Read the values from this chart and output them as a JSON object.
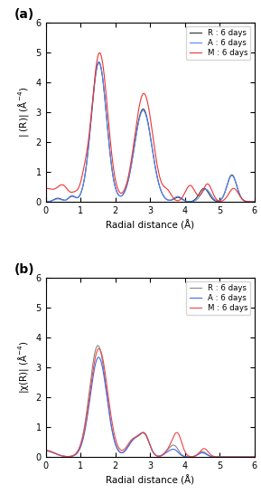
{
  "panel_a": {
    "ylabel": "| (R)| (Å$^{-4}$)",
    "xlabel": "Radial distance (Å)",
    "ylim": [
      0,
      6
    ],
    "xlim": [
      0,
      6
    ],
    "yticks": [
      0,
      1,
      2,
      3,
      4,
      5,
      6
    ],
    "xticks": [
      0,
      1,
      2,
      3,
      4,
      5,
      6
    ],
    "legend": [
      "R : 6 days",
      "A : 6 days",
      "M : 6 days"
    ],
    "colors": [
      "#333333",
      "#5588ff",
      "#ee3333"
    ],
    "label": "(a)"
  },
  "panel_b": {
    "ylabel": "|χ(R)| (Å$^{-4}$)",
    "xlabel": "Radial distance (Å)",
    "ylim": [
      0,
      6
    ],
    "xlim": [
      0,
      6
    ],
    "yticks": [
      0,
      1,
      2,
      3,
      4,
      5,
      6
    ],
    "xticks": [
      0,
      1,
      2,
      3,
      4,
      5,
      6
    ],
    "legend": [
      "R : 6 days",
      "A : 6 days",
      "M : 6 days"
    ],
    "colors": [
      "#888888",
      "#4466ee",
      "#ee4444"
    ],
    "label": "(b)"
  }
}
